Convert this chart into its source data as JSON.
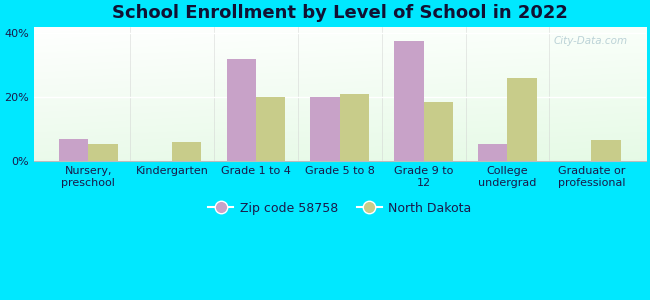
{
  "title": "School Enrollment by Level of School in 2022",
  "categories": [
    "Nursery,\npreschool",
    "Kindergarten",
    "Grade 1 to 4",
    "Grade 5 to 8",
    "Grade 9 to\n12",
    "College\nundergrad",
    "Graduate or\nprofessional"
  ],
  "zip_values": [
    7.0,
    0.0,
    32.0,
    20.0,
    37.5,
    5.5,
    0.0
  ],
  "nd_values": [
    5.5,
    6.0,
    20.0,
    21.0,
    18.5,
    26.0,
    6.5
  ],
  "zip_color": "#c8a2c8",
  "nd_color": "#c8cc8a",
  "background_outer": "#00e8ff",
  "ylim": [
    0,
    42
  ],
  "yticks": [
    0,
    20,
    40
  ],
  "ytick_labels": [
    "0%",
    "20%",
    "40%"
  ],
  "watermark": "City-Data.com",
  "legend_label_zip": "Zip code 58758",
  "legend_label_nd": "North Dakota",
  "bar_width": 0.35,
  "title_fontsize": 13,
  "tick_fontsize": 8,
  "label_color": "#1a1a4a"
}
